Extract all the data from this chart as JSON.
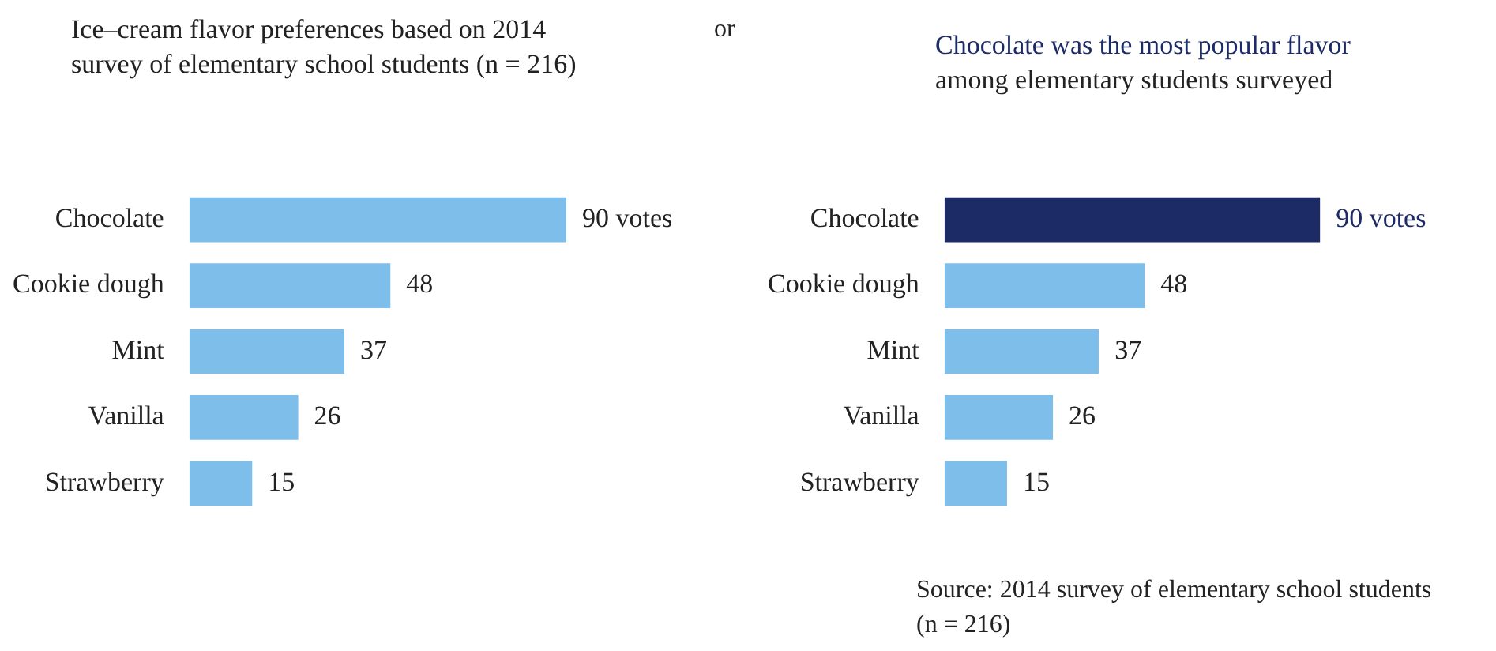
{
  "chart_data": [
    {
      "type": "bar",
      "orientation": "horizontal",
      "title": "Ice–cream flavor preferences based on 2014 survey of elementary school students (n = 216)",
      "categories": [
        "Chocolate",
        "Cookie dough",
        "Mint",
        "Vanilla",
        "Strawberry"
      ],
      "values": [
        90,
        48,
        37,
        26,
        15
      ],
      "value_labels": [
        "90 votes",
        "48",
        "37",
        "26",
        "15"
      ],
      "color": "#7dbfea",
      "tick_labels": "y",
      "legend": false,
      "annotations": [
        "or"
      ]
    },
    {
      "type": "bar",
      "orientation": "horizontal",
      "title": "Chocolate was the most popular flavor",
      "subtitle": "among elementary students surveyed",
      "categories": [
        "Chocolate",
        "Cookie dough",
        "Mint",
        "Vanilla",
        "Strawberry"
      ],
      "values": [
        90,
        48,
        37,
        26,
        15
      ],
      "value_labels": [
        "90 votes",
        "48",
        "37",
        "26",
        "15"
      ],
      "colors": [
        "#1c2a66",
        "#7dbfea",
        "#7dbfea",
        "#7dbfea",
        "#7dbfea"
      ],
      "tick_labels": "y",
      "legend": false,
      "annotations": [
        "Source: 2014 survey of elementary school students (n = 216)"
      ]
    }
  ]
}
